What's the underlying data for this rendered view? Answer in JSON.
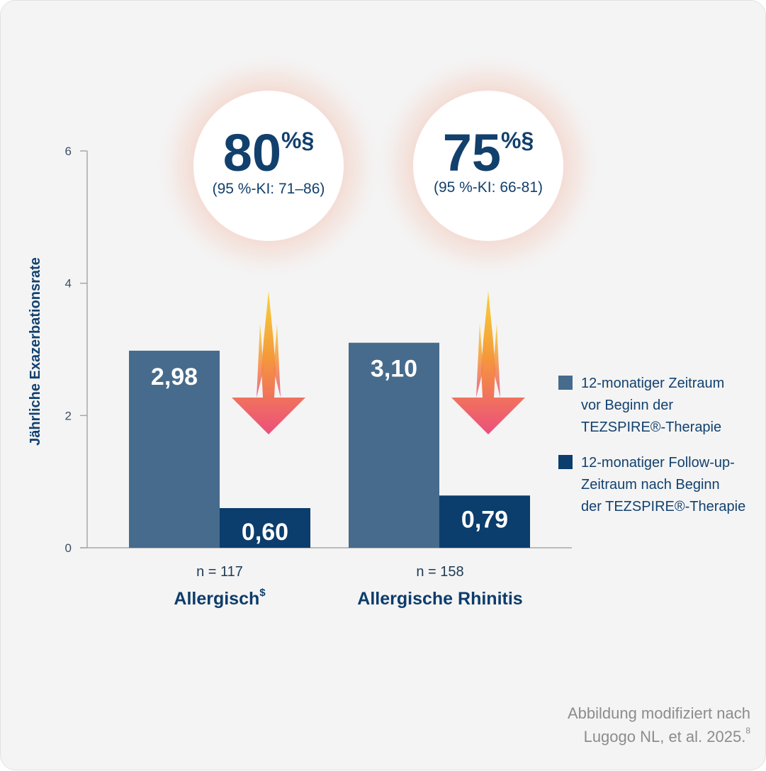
{
  "chart_data": {
    "type": "bar",
    "ylabel": "Jährliche Exazerbationsrate",
    "ylim": [
      0,
      6
    ],
    "yticks": [
      "0",
      "2",
      "4",
      "6"
    ],
    "categories": [
      {
        "n_label": "n = 117",
        "label": "Allergisch",
        "label_sup": "$"
      },
      {
        "n_label": "n = 158",
        "label": "Allergische Rhinitis",
        "label_sup": ""
      }
    ],
    "series": [
      {
        "name": "12-monatiger Zeitraum vor Beginn der TEZSPIRE®-Therapie",
        "values": [
          2.98,
          3.1
        ],
        "display": [
          "2,98",
          "3,10"
        ],
        "color": "#466b8c"
      },
      {
        "name": "12-monatiger Follow-up-Zeitraum nach Beginn der TEZSPIRE®-Therapie",
        "values": [
          0.6,
          0.79
        ],
        "display": [
          "0,60",
          "0,79"
        ],
        "color": "#0b3d6d"
      }
    ],
    "reductions": [
      {
        "value": "80",
        "unit": "%§",
        "ci": "(95 %-KI: 71–86)"
      },
      {
        "value": "75",
        "unit": "%§",
        "ci": "(95 %-KI: 66-81)"
      }
    ],
    "grid": false,
    "legend_position": "right"
  },
  "legend": [
    {
      "lines": [
        "12-monatiger Zeitraum",
        "vor Beginn der",
        "TEZSPIRE®-Therapie"
      ]
    },
    {
      "lines": [
        "12-monatiger Follow-up-",
        "Zeitraum nach Beginn",
        "der TEZSPIRE®-Therapie"
      ]
    }
  ],
  "source": {
    "line1": "Abbildung modifiziert nach",
    "line2": "Lugogo NL, et al. 2025.",
    "line2_sup": "8"
  },
  "colors": {
    "background": "#f4f4f4",
    "bar_before": "#466b8c",
    "bar_after": "#0b3d6d",
    "text_navy": "#12416f",
    "arrow_top": "#f6b830",
    "arrow_bottom": "#ec5478",
    "source_gray": "#8c8c8c"
  }
}
